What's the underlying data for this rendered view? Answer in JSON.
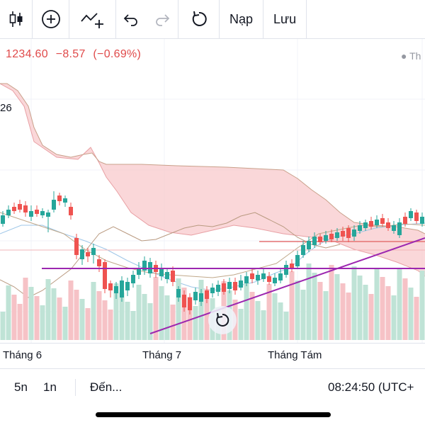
{
  "toolbar": {
    "buttons": [
      {
        "name": "candlestick-chart-type-icon"
      },
      {
        "name": "add-indicator-icon"
      },
      {
        "name": "compare-symbol-icon"
      },
      {
        "name": "undo-icon"
      },
      {
        "name": "redo-icon"
      },
      {
        "name": "reload-icon"
      }
    ],
    "load_label": "Nạp",
    "save_label": "Lưu"
  },
  "quote": {
    "price": "1234.60",
    "change": "−8.57",
    "change_pct": "(−0.69%)",
    "color": "#e04a4a"
  },
  "legend_tag": "● Th",
  "side_value": "26",
  "x_axis_labels": [
    "Tháng 6",
    "Tháng 7",
    "Tháng Tám"
  ],
  "bottom_bar": {
    "range_5d": "5n",
    "range_1d": "1n",
    "goto_label": "Đến...",
    "clock": "08:24:50 (UTC+"
  },
  "colors": {
    "up": "#26a69a",
    "down": "#ef5350",
    "cloud": "#f8c9cc",
    "trendline": "#9c27b0",
    "hline": "#e57373"
  }
}
